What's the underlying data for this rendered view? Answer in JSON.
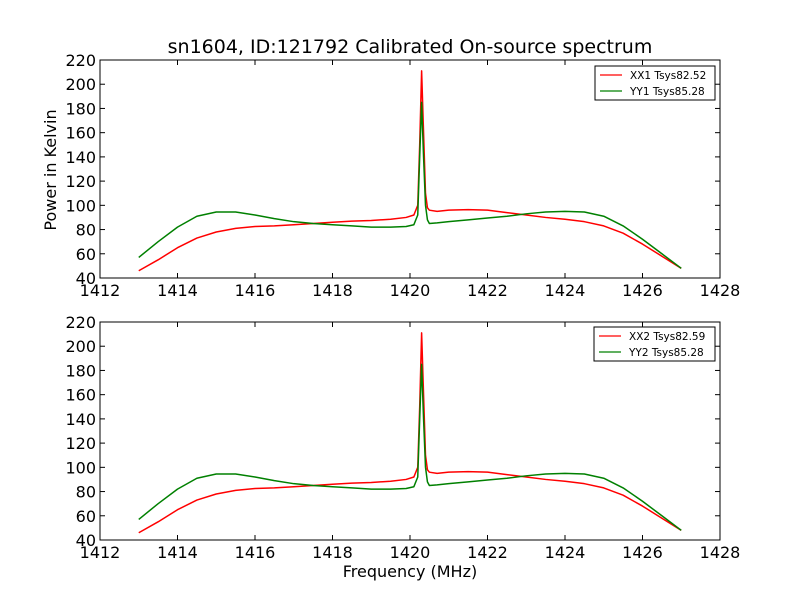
{
  "chart_data": [
    {
      "type": "line",
      "title": "sn1604, ID:121792 Calibrated On-source spectrum",
      "xlabel": "",
      "ylabel": "Power in Kelvin",
      "xlim": [
        1412,
        1428
      ],
      "ylim": [
        40,
        220
      ],
      "xticks": [
        "1412",
        "1414",
        "1416",
        "1418",
        "1420",
        "1422",
        "1424",
        "1426",
        "1428"
      ],
      "yticks": [
        "40",
        "60",
        "80",
        "100",
        "120",
        "140",
        "160",
        "180",
        "200",
        "220"
      ],
      "grid": false,
      "legend_position": "top-right",
      "series": [
        {
          "name": "XX1 Tsys82.52",
          "color": "#ff0000",
          "x": [
            1413.0,
            1413.5,
            1414.0,
            1414.5,
            1415.0,
            1415.5,
            1416.0,
            1416.5,
            1417.0,
            1417.5,
            1418.0,
            1418.5,
            1419.0,
            1419.5,
            1419.9,
            1420.1,
            1420.2,
            1420.25,
            1420.3,
            1420.35,
            1420.4,
            1420.45,
            1420.5,
            1420.7,
            1421.0,
            1421.5,
            1422.0,
            1422.5,
            1423.0,
            1423.5,
            1424.0,
            1424.5,
            1425.0,
            1425.5,
            1426.0,
            1426.5,
            1427.0
          ],
          "y": [
            46,
            55,
            65,
            73,
            78,
            81,
            82.5,
            83,
            84,
            85,
            86,
            87,
            87.5,
            88.5,
            90,
            92,
            100,
            150,
            211,
            160,
            110,
            98,
            96,
            95,
            96,
            96.5,
            96,
            94,
            92,
            90,
            88.5,
            86.5,
            83,
            77,
            68,
            58,
            48
          ]
        },
        {
          "name": "YY1 Tsys85.28",
          "color": "#008000",
          "x": [
            1413.0,
            1413.5,
            1414.0,
            1414.5,
            1415.0,
            1415.5,
            1416.0,
            1416.5,
            1417.0,
            1417.5,
            1418.0,
            1418.5,
            1419.0,
            1419.5,
            1419.9,
            1420.1,
            1420.2,
            1420.25,
            1420.3,
            1420.35,
            1420.4,
            1420.45,
            1420.5,
            1420.7,
            1421.0,
            1421.5,
            1422.0,
            1422.5,
            1423.0,
            1423.5,
            1424.0,
            1424.5,
            1425.0,
            1425.5,
            1426.0,
            1426.5,
            1427.0
          ],
          "y": [
            57,
            70,
            82,
            91,
            94.5,
            94.5,
            92,
            89,
            86.5,
            85,
            84,
            83,
            82,
            82,
            82.5,
            84,
            92,
            140,
            185,
            140,
            100,
            88,
            85,
            85.5,
            86.5,
            88,
            89.5,
            91,
            93,
            94.5,
            95,
            94.5,
            91,
            83,
            72,
            60,
            48
          ]
        }
      ]
    },
    {
      "type": "line",
      "title": "",
      "xlabel": "Frequency (MHz)",
      "ylabel": "",
      "xlim": [
        1412,
        1428
      ],
      "ylim": [
        40,
        220
      ],
      "xticks": [
        "1412",
        "1414",
        "1416",
        "1418",
        "1420",
        "1422",
        "1424",
        "1426",
        "1428"
      ],
      "yticks": [
        "40",
        "60",
        "80",
        "100",
        "120",
        "140",
        "160",
        "180",
        "200",
        "220"
      ],
      "grid": false,
      "legend_position": "top-right",
      "series": [
        {
          "name": "XX2 Tsys82.59",
          "color": "#ff0000",
          "x": [
            1413.0,
            1413.5,
            1414.0,
            1414.5,
            1415.0,
            1415.5,
            1416.0,
            1416.5,
            1417.0,
            1417.5,
            1418.0,
            1418.5,
            1419.0,
            1419.5,
            1419.9,
            1420.1,
            1420.2,
            1420.25,
            1420.3,
            1420.35,
            1420.4,
            1420.45,
            1420.5,
            1420.7,
            1421.0,
            1421.5,
            1422.0,
            1422.5,
            1423.0,
            1423.5,
            1424.0,
            1424.5,
            1425.0,
            1425.5,
            1426.0,
            1426.5,
            1427.0
          ],
          "y": [
            46,
            55,
            65,
            73,
            78,
            81,
            82.5,
            83,
            84,
            85,
            86,
            87,
            87.5,
            88.5,
            90,
            92,
            100,
            150,
            211,
            160,
            110,
            98,
            96,
            95,
            96,
            96.5,
            96,
            94,
            92,
            90,
            88.5,
            86.5,
            83,
            77,
            68,
            58,
            48
          ]
        },
        {
          "name": "YY2 Tsys85.28",
          "color": "#008000",
          "x": [
            1413.0,
            1413.5,
            1414.0,
            1414.5,
            1415.0,
            1415.5,
            1416.0,
            1416.5,
            1417.0,
            1417.5,
            1418.0,
            1418.5,
            1419.0,
            1419.5,
            1419.9,
            1420.1,
            1420.2,
            1420.25,
            1420.3,
            1420.35,
            1420.4,
            1420.45,
            1420.5,
            1420.7,
            1421.0,
            1421.5,
            1422.0,
            1422.5,
            1423.0,
            1423.5,
            1424.0,
            1424.5,
            1425.0,
            1425.5,
            1426.0,
            1426.5,
            1427.0
          ],
          "y": [
            57,
            70,
            82,
            91,
            94.5,
            94.5,
            92,
            89,
            86.5,
            85,
            84,
            83,
            82,
            82,
            82.5,
            84,
            92,
            140,
            185,
            140,
            100,
            88,
            85,
            85.5,
            86.5,
            88,
            89.5,
            91,
            93,
            94.5,
            95,
            94.5,
            91,
            83,
            72,
            60,
            48
          ]
        }
      ]
    }
  ]
}
